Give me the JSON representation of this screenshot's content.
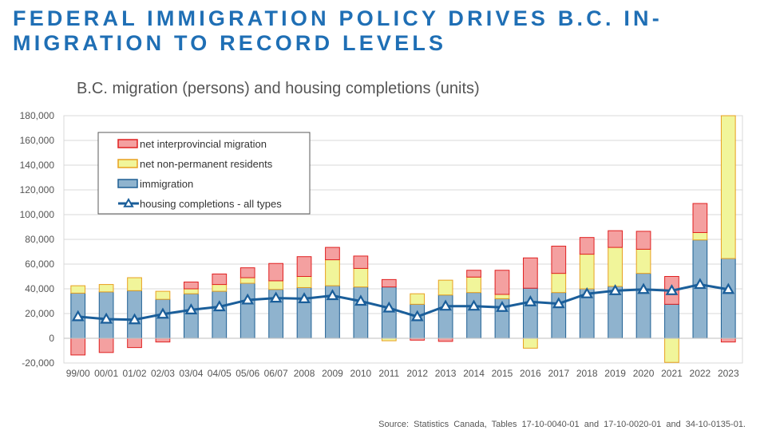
{
  "slide": {
    "title": "FEDERAL IMMIGRATION POLICY DRIVES B.C. IN-MIGRATION TO RECORD LEVELS",
    "source": "Source: Statistics Canada, Tables 17-10-0040-01 and 17-10-0020-01 and 34-10-0135-01."
  },
  "chart_data": {
    "type": "bar",
    "subtype": "stacked bar with line overlay",
    "title": "B.C. migration (persons) and housing completions (units)",
    "xlabel": "",
    "ylabel": "",
    "ylim": [
      -20000,
      180000
    ],
    "yticks": [
      -20000,
      0,
      20000,
      40000,
      60000,
      80000,
      100000,
      120000,
      140000,
      160000,
      180000
    ],
    "ytick_labels": [
      "-20,000",
      "0",
      "20,000",
      "40,000",
      "60,000",
      "80,000",
      "100,000",
      "120,000",
      "140,000",
      "160,000",
      "180,000"
    ],
    "grid": true,
    "legend_position": "top-left",
    "categories": [
      "99/00",
      "00/01",
      "01/02",
      "02/03",
      "03/04",
      "04/05",
      "05/06",
      "06/07",
      "2008",
      "2009",
      "2010",
      "2011",
      "2012",
      "2013",
      "2014",
      "2015",
      "2016",
      "2017",
      "2018",
      "2019",
      "2020",
      "2021",
      "2022",
      "2023"
    ],
    "series": [
      {
        "name": "immigration",
        "kind": "bar",
        "values": [
          36500,
          37500,
          38500,
          31500,
          36000,
          38000,
          44500,
          39500,
          41000,
          42500,
          41500,
          41500,
          27500,
          35000,
          37000,
          32000,
          40500,
          37000,
          40000,
          42000,
          52500,
          27500,
          79500,
          64500
        ]
      },
      {
        "name": "net non-permanent residents",
        "kind": "bar",
        "values": [
          6000,
          6000,
          10500,
          6500,
          4000,
          5500,
          4500,
          7000,
          9000,
          21000,
          15000,
          -2000,
          8500,
          12000,
          12500,
          3500,
          -8000,
          15500,
          28000,
          31500,
          19500,
          -19500,
          6000,
          115500
        ]
      },
      {
        "name": "net interprovincial migration",
        "kind": "bar",
        "values": [
          -13500,
          -11500,
          -7500,
          -3000,
          5500,
          8500,
          8000,
          14000,
          16000,
          10000,
          10000,
          6000,
          -1500,
          -2500,
          5500,
          19500,
          24500,
          22000,
          13500,
          13500,
          14500,
          22500,
          23500,
          -3000
        ]
      },
      {
        "name": "housing completions - all types",
        "kind": "line",
        "values": [
          17500,
          15500,
          15000,
          19500,
          23000,
          25500,
          31000,
          32500,
          32000,
          34500,
          30000,
          24500,
          17500,
          26000,
          26000,
          25000,
          29500,
          28000,
          36000,
          38500,
          39500,
          38500,
          43500,
          39500
        ]
      }
    ]
  },
  "style": {
    "immigration_fill": "#8fb3ce",
    "immigration_stroke": "#1f5f93",
    "npr_fill": "#f1f59a",
    "npr_stroke": "#e8a020",
    "interprov_fill": "#f4a0a0",
    "interprov_stroke": "#e02020",
    "line_color": "#1a5e9a",
    "grid_color": "#d9d9d9",
    "axis_text": "#555555"
  },
  "legend": [
    {
      "label": "net interprovincial migration",
      "key": "interprov"
    },
    {
      "label": "net non-permanent residents",
      "key": "npr"
    },
    {
      "label": "immigration",
      "key": "immigration"
    },
    {
      "label": "housing completions - all types",
      "key": "line"
    }
  ]
}
